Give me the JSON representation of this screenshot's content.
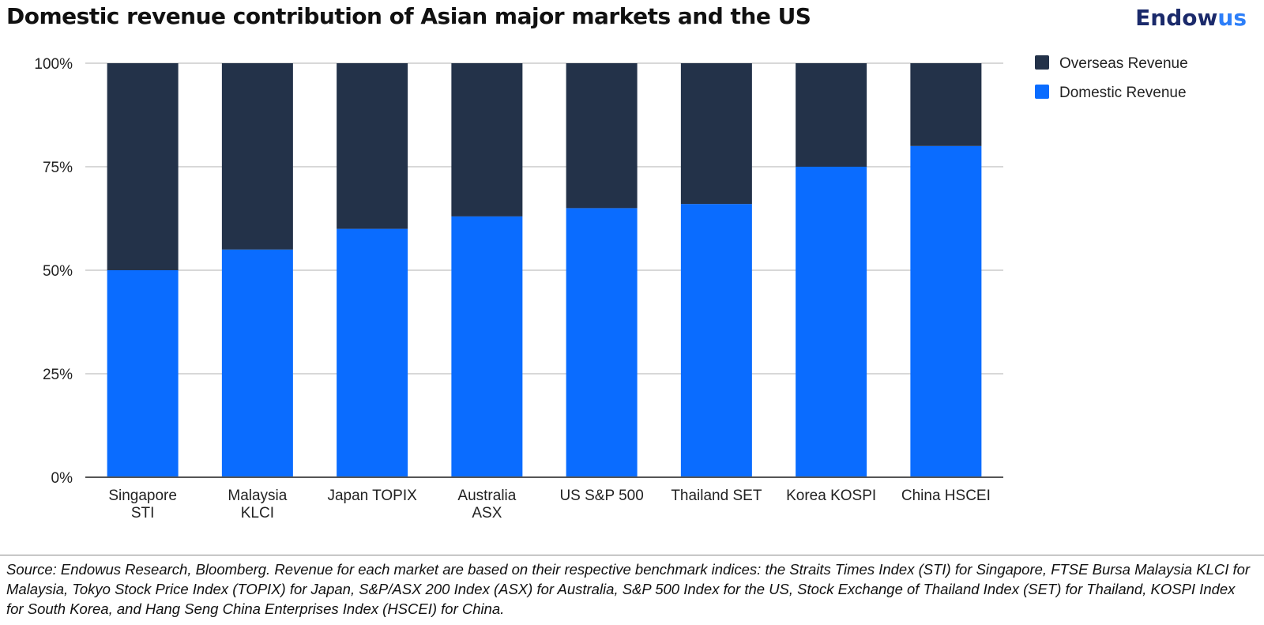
{
  "header": {
    "title": "Domestic revenue contribution of Asian major markets and the US",
    "logo_part1": "Endow",
    "logo_part2": "us"
  },
  "colors": {
    "overseas": "#233249",
    "domestic": "#0a6cff",
    "grid": "#cccccc",
    "axis": "#555555",
    "text": "#222222"
  },
  "chart_data": {
    "type": "bar",
    "stacked": true,
    "categories": [
      [
        "Singapore",
        "STI"
      ],
      [
        "Malaysia",
        "KLCI"
      ],
      [
        "Japan TOPIX"
      ],
      [
        "Australia",
        "ASX"
      ],
      [
        "US S&P 500"
      ],
      [
        "Thailand SET"
      ],
      [
        "Korea KOSPI"
      ],
      [
        "China HSCEI"
      ]
    ],
    "series": [
      {
        "name": "Domestic Revenue",
        "values": [
          50,
          55,
          60,
          63,
          65,
          66,
          75,
          80
        ]
      },
      {
        "name": "Overseas Revenue",
        "values": [
          50,
          45,
          40,
          37,
          35,
          34,
          25,
          20
        ]
      }
    ],
    "ylim": [
      0,
      100
    ],
    "yticks": [
      "0%",
      "25%",
      "50%",
      "75%",
      "100%"
    ],
    "grid": true,
    "legend_placement": "top-right",
    "legend": [
      "Overseas Revenue",
      "Domestic Revenue"
    ]
  },
  "footer": {
    "source": "Source: Endowus Research, Bloomberg. Revenue for each market are based on their respective benchmark indices: the Straits Times Index (STI) for Singapore, FTSE Bursa Malaysia KLCI for Malaysia, Tokyo Stock Price Index (TOPIX) for Japan, S&P/ASX 200 Index (ASX) for Australia, S&P 500 Index for the US, Stock Exchange of Thailand Index (SET) for Thailand, KOSPI Index for South Korea, and Hang Seng China Enterprises Index (HSCEI) for China."
  }
}
